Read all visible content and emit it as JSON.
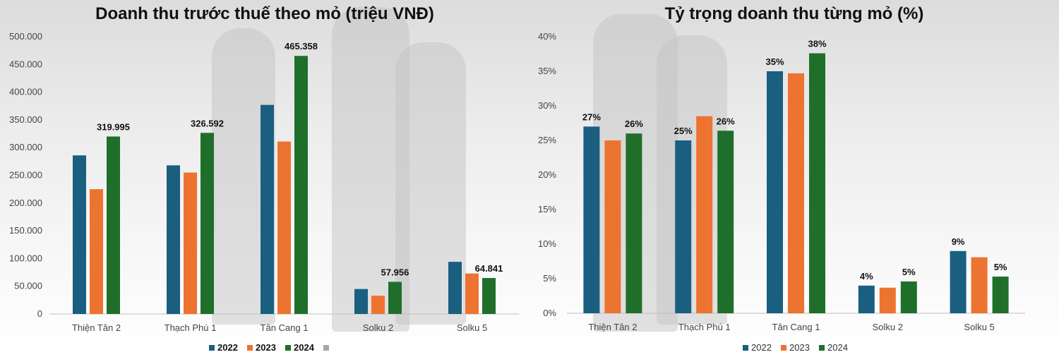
{
  "colors": {
    "2022": "#1a5f80",
    "2023": "#ed7331",
    "2024": "#1f6f2b",
    "extra": "#a6a6a6"
  },
  "chart_data": [
    {
      "type": "bar",
      "title": "Doanh thu trước thuế theo mỏ (triệu VNĐ)",
      "categories": [
        "Thiện Tân 2",
        "Thạch Phú 1",
        "Tân Cang 1",
        "Solku 2",
        "Solku 5"
      ],
      "series": [
        {
          "name": "2022",
          "values": [
            286000,
            268000,
            377000,
            45000,
            94000
          ]
        },
        {
          "name": "2023",
          "values": [
            225000,
            255000,
            311000,
            33000,
            73000
          ]
        },
        {
          "name": "2024",
          "values": [
            319995,
            326592,
            465358,
            57956,
            64841
          ]
        }
      ],
      "data_labels": {
        "series": "2024",
        "labels": [
          "319.995",
          "326.592",
          "465.358",
          "57.956",
          "64.841"
        ]
      },
      "ylim": [
        0,
        500000
      ],
      "yticks": [
        "0",
        "50.000",
        "100.000",
        "150.000",
        "200.000",
        "250.000",
        "300.000",
        "350.000",
        "400.000",
        "450.000",
        "500.000"
      ],
      "legend": [
        "2022",
        "2023",
        "2024",
        ""
      ],
      "legend_position": "bottom",
      "grid": false
    },
    {
      "type": "bar",
      "title": "Tỷ trọng doanh thu từng mỏ (%)",
      "categories": [
        "Thiện Tân 2",
        "Thạch Phú 1",
        "Tân Cang 1",
        "Solku 2",
        "Solku 5"
      ],
      "series": [
        {
          "name": "2022",
          "values": [
            27,
            25,
            35,
            4,
            9
          ]
        },
        {
          "name": "2023",
          "values": [
            25,
            28.5,
            34.7,
            3.7,
            8.1
          ]
        },
        {
          "name": "2024",
          "values": [
            26,
            26.4,
            37.6,
            4.6,
            5.3
          ]
        }
      ],
      "data_labels": [
        {
          "series": "2022",
          "labels": [
            "27%",
            "25%",
            "35%",
            "4%",
            "9%"
          ]
        },
        {
          "series": "2024",
          "labels": [
            "26%",
            "26%",
            "38%",
            "5%",
            "5%"
          ]
        }
      ],
      "ylim": [
        0,
        40
      ],
      "yticks": [
        "0%",
        "5%",
        "10%",
        "15%",
        "20%",
        "25%",
        "30%",
        "35%",
        "40%"
      ],
      "legend": [
        "2022",
        "2023",
        "2024"
      ],
      "legend_position": "bottom",
      "grid": false
    }
  ]
}
